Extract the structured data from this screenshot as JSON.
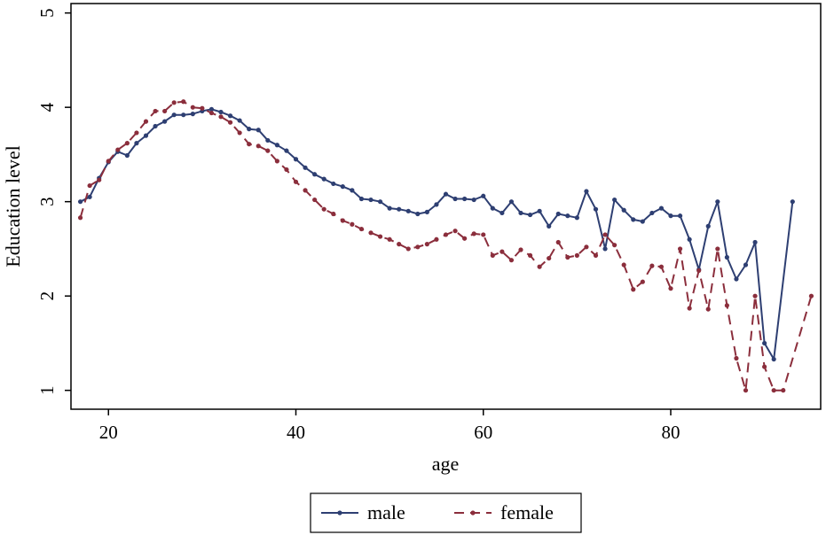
{
  "chart_data": {
    "type": "line",
    "xlabel": "age",
    "ylabel": "Education level",
    "xlim": [
      16,
      96
    ],
    "ylim": [
      0.8,
      5.1
    ],
    "xticks": [
      20,
      40,
      60,
      80
    ],
    "yticks": [
      1,
      2,
      3,
      4,
      5
    ],
    "grid": false,
    "legend_position": "bottom",
    "series": [
      {
        "name": "male",
        "color": "#2e3f72",
        "style": "solid",
        "x": [
          17,
          18,
          19,
          20,
          21,
          22,
          23,
          24,
          25,
          26,
          27,
          28,
          29,
          30,
          31,
          32,
          33,
          34,
          35,
          36,
          37,
          38,
          39,
          40,
          41,
          42,
          43,
          44,
          45,
          46,
          47,
          48,
          49,
          50,
          51,
          52,
          53,
          54,
          55,
          56,
          57,
          58,
          59,
          60,
          61,
          62,
          63,
          64,
          65,
          66,
          67,
          68,
          69,
          70,
          71,
          72,
          73,
          74,
          75,
          76,
          77,
          78,
          79,
          80,
          81,
          82,
          83,
          84,
          85,
          86,
          87,
          88,
          89,
          90,
          91,
          93
        ],
        "y": [
          3.0,
          3.05,
          3.25,
          3.42,
          3.53,
          3.49,
          3.62,
          3.7,
          3.8,
          3.85,
          3.92,
          3.92,
          3.93,
          3.96,
          3.98,
          3.95,
          3.91,
          3.86,
          3.77,
          3.76,
          3.65,
          3.6,
          3.54,
          3.45,
          3.36,
          3.29,
          3.24,
          3.19,
          3.16,
          3.12,
          3.03,
          3.02,
          3.0,
          2.93,
          2.92,
          2.9,
          2.87,
          2.89,
          2.97,
          3.08,
          3.03,
          3.03,
          3.02,
          3.06,
          2.93,
          2.88,
          3.0,
          2.88,
          2.86,
          2.9,
          2.74,
          2.87,
          2.85,
          2.83,
          3.11,
          2.92,
          2.5,
          3.02,
          2.91,
          2.81,
          2.79,
          2.88,
          2.93,
          2.85,
          2.85,
          2.6,
          2.28,
          2.74,
          3.0,
          2.41,
          2.18,
          2.33,
          2.57,
          1.5,
          1.33,
          3.0
        ]
      },
      {
        "name": "female",
        "color": "#8b2e3c",
        "style": "dashed",
        "x": [
          17,
          18,
          19,
          20,
          21,
          22,
          23,
          24,
          25,
          26,
          27,
          28,
          29,
          30,
          31,
          32,
          33,
          34,
          35,
          36,
          37,
          38,
          39,
          40,
          41,
          42,
          43,
          44,
          45,
          46,
          47,
          48,
          49,
          50,
          51,
          52,
          53,
          54,
          55,
          56,
          57,
          58,
          59,
          60,
          61,
          62,
          63,
          64,
          65,
          66,
          67,
          68,
          69,
          70,
          71,
          72,
          73,
          74,
          75,
          76,
          77,
          78,
          79,
          80,
          81,
          82,
          83,
          84,
          85,
          86,
          87,
          88,
          89,
          90,
          91,
          92,
          95
        ],
        "y": [
          2.83,
          3.17,
          3.23,
          3.43,
          3.55,
          3.62,
          3.73,
          3.85,
          3.96,
          3.96,
          4.05,
          4.06,
          4.0,
          3.99,
          3.94,
          3.9,
          3.84,
          3.73,
          3.61,
          3.59,
          3.54,
          3.43,
          3.34,
          3.21,
          3.12,
          3.02,
          2.92,
          2.87,
          2.8,
          2.76,
          2.71,
          2.67,
          2.63,
          2.6,
          2.55,
          2.5,
          2.52,
          2.55,
          2.6,
          2.65,
          2.69,
          2.61,
          2.66,
          2.65,
          2.43,
          2.47,
          2.38,
          2.49,
          2.43,
          2.31,
          2.4,
          2.57,
          2.41,
          2.43,
          2.52,
          2.43,
          2.65,
          2.54,
          2.33,
          2.07,
          2.15,
          2.32,
          2.31,
          2.08,
          2.5,
          1.87,
          2.27,
          1.86,
          2.5,
          1.9,
          1.34,
          1.0,
          2.0,
          1.25,
          1.0,
          1.0,
          2.0
        ]
      }
    ]
  }
}
